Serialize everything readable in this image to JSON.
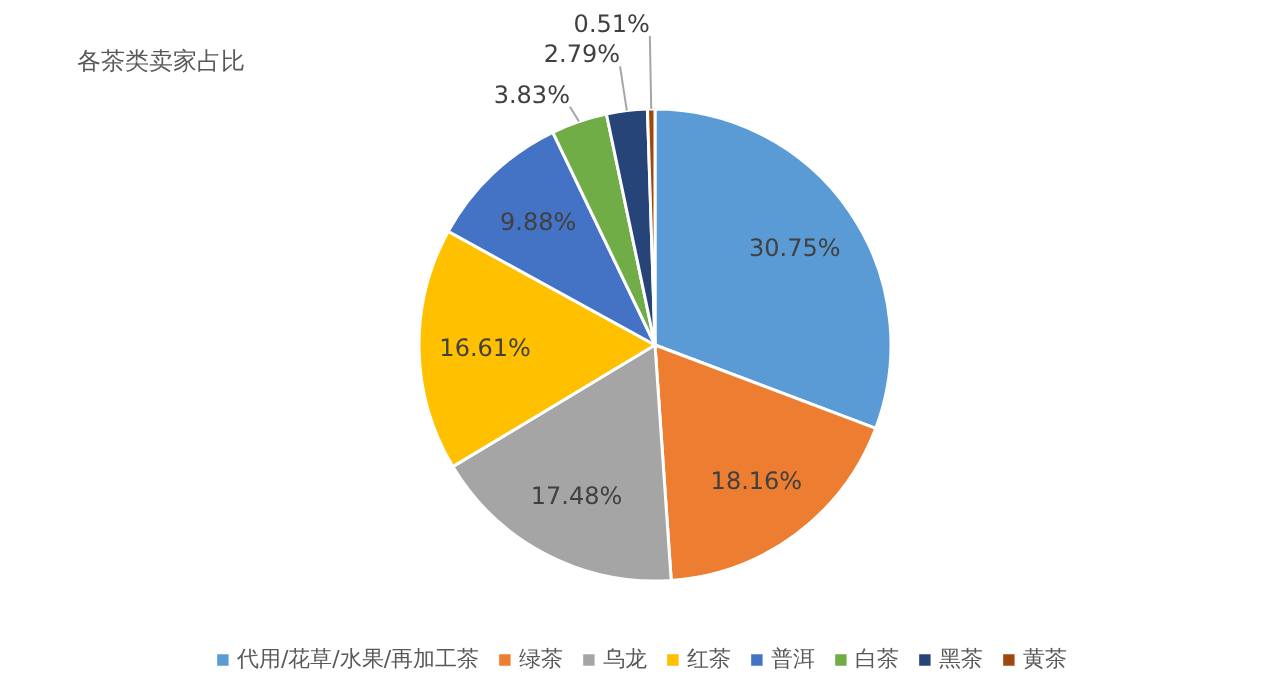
{
  "chart_data": {
    "type": "pie",
    "title": "各茶类卖家占比",
    "categories": [
      "代用/花草/水果/再加工茶",
      "绿茶",
      "乌龙",
      "红茶",
      "普洱",
      "白茶",
      "黑茶",
      "黄茶"
    ],
    "values": [
      30.75,
      18.16,
      17.48,
      16.61,
      9.88,
      3.83,
      2.79,
      0.51
    ],
    "value_labels": [
      "30.75%",
      "18.16%",
      "17.48%",
      "16.61%",
      "9.88%",
      "3.83%",
      "2.79%",
      "0.51%"
    ],
    "colors": [
      "#5b9bd5",
      "#ed7d31",
      "#a5a5a5",
      "#ffc000",
      "#4472c4",
      "#70ad47",
      "#264478",
      "#9e480e"
    ],
    "legend": "bottom"
  }
}
